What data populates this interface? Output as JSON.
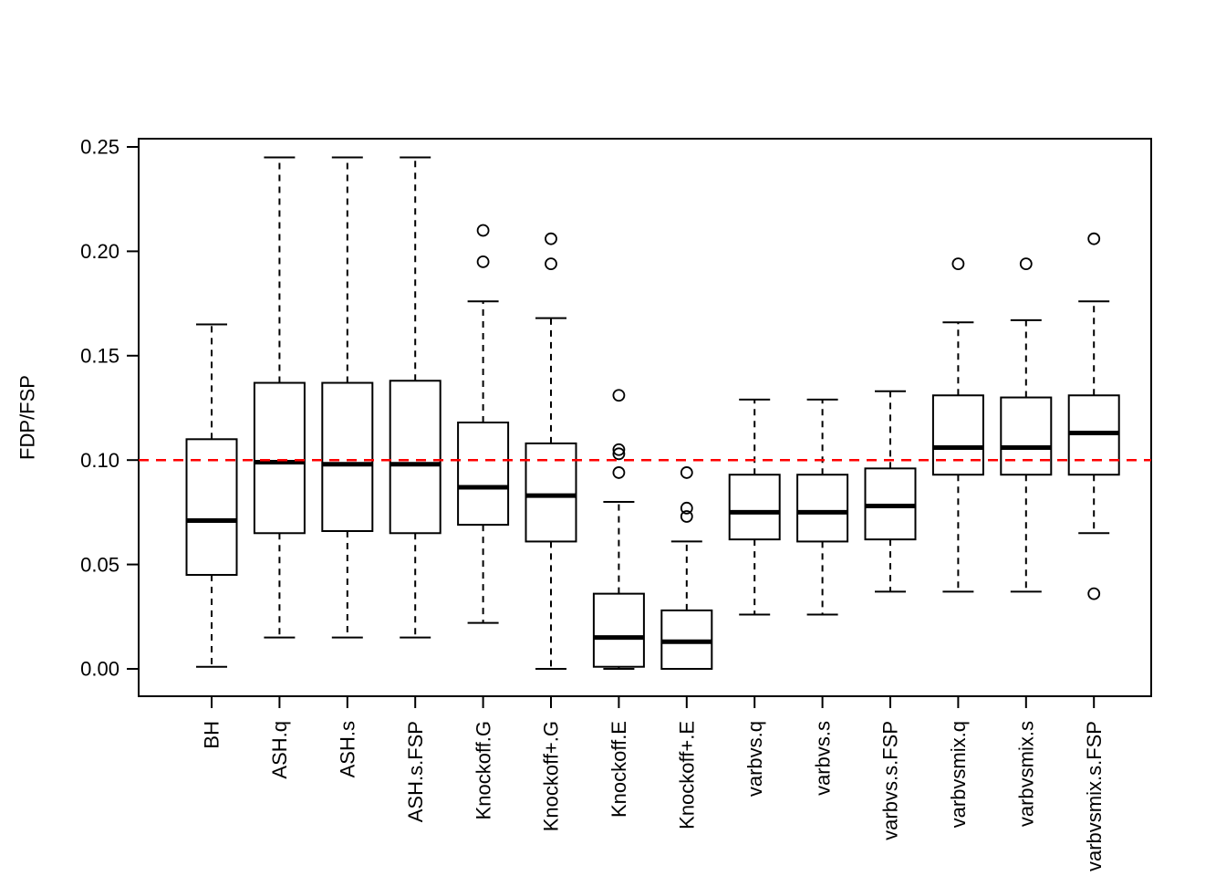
{
  "chart_data": {
    "type": "boxplot",
    "title": "",
    "xlabel": "",
    "ylabel": "FDP/FSP",
    "ylim": [
      0,
      0.25
    ],
    "grid": false,
    "legend_position": "none",
    "box_stroke_color": "#000000",
    "box_fill_color": "#ffffff",
    "reference_line": {
      "value": 0.1,
      "color": "#ff0000",
      "style": "dashed"
    },
    "yticks": [
      {
        "value": 0.0,
        "label": "0.00"
      },
      {
        "value": 0.05,
        "label": "0.05"
      },
      {
        "value": 0.1,
        "label": "0.10"
      },
      {
        "value": 0.15,
        "label": "0.15"
      },
      {
        "value": 0.2,
        "label": "0.20"
      },
      {
        "value": 0.25,
        "label": "0.25"
      }
    ],
    "categories": [
      "BH",
      "ASH.q",
      "ASH.s",
      "ASH.s.FSP",
      "Knockoff.G",
      "Knockoff+.G",
      "Knockoff.E",
      "Knockoff+.E",
      "varbvs.q",
      "varbvs.s",
      "varbvs.s.FSP",
      "varbvsmix.q",
      "varbvsmix.s",
      "varbvsmix.s.FSP"
    ],
    "boxes": [
      {
        "label": "BH",
        "whisker_low": 0.001,
        "q1": 0.045,
        "median": 0.071,
        "q3": 0.11,
        "whisker_high": 0.165,
        "outliers": []
      },
      {
        "label": "ASH.q",
        "whisker_low": 0.015,
        "q1": 0.065,
        "median": 0.099,
        "q3": 0.137,
        "whisker_high": 0.245,
        "outliers": []
      },
      {
        "label": "ASH.s",
        "whisker_low": 0.015,
        "q1": 0.066,
        "median": 0.098,
        "q3": 0.137,
        "whisker_high": 0.245,
        "outliers": []
      },
      {
        "label": "ASH.s.FSP",
        "whisker_low": 0.015,
        "q1": 0.065,
        "median": 0.098,
        "q3": 0.138,
        "whisker_high": 0.245,
        "outliers": []
      },
      {
        "label": "Knockoff.G",
        "whisker_low": 0.022,
        "q1": 0.069,
        "median": 0.087,
        "q3": 0.118,
        "whisker_high": 0.176,
        "outliers": [
          0.195,
          0.21
        ]
      },
      {
        "label": "Knockoff+.G",
        "whisker_low": 0.0,
        "q1": 0.061,
        "median": 0.083,
        "q3": 0.108,
        "whisker_high": 0.168,
        "outliers": [
          0.194,
          0.206
        ]
      },
      {
        "label": "Knockoff.E",
        "whisker_low": 0.0,
        "q1": 0.001,
        "median": 0.015,
        "q3": 0.036,
        "whisker_high": 0.08,
        "outliers": [
          0.094,
          0.103,
          0.105,
          0.131
        ]
      },
      {
        "label": "Knockoff+.E",
        "whisker_low": 0.0,
        "q1": 0.0,
        "median": 0.013,
        "q3": 0.028,
        "whisker_high": 0.061,
        "outliers": [
          0.073,
          0.077,
          0.094
        ]
      },
      {
        "label": "varbvs.q",
        "whisker_low": 0.026,
        "q1": 0.062,
        "median": 0.075,
        "q3": 0.093,
        "whisker_high": 0.129,
        "outliers": []
      },
      {
        "label": "varbvs.s",
        "whisker_low": 0.026,
        "q1": 0.061,
        "median": 0.075,
        "q3": 0.093,
        "whisker_high": 0.129,
        "outliers": []
      },
      {
        "label": "varbvs.s.FSP",
        "whisker_low": 0.037,
        "q1": 0.062,
        "median": 0.078,
        "q3": 0.096,
        "whisker_high": 0.133,
        "outliers": []
      },
      {
        "label": "varbvsmix.q",
        "whisker_low": 0.037,
        "q1": 0.093,
        "median": 0.106,
        "q3": 0.131,
        "whisker_high": 0.166,
        "outliers": [
          0.194
        ]
      },
      {
        "label": "varbvsmix.s",
        "whisker_low": 0.037,
        "q1": 0.093,
        "median": 0.106,
        "q3": 0.13,
        "whisker_high": 0.167,
        "outliers": [
          0.194
        ]
      },
      {
        "label": "varbvsmix.s.FSP",
        "whisker_low": 0.065,
        "q1": 0.093,
        "median": 0.113,
        "q3": 0.131,
        "whisker_high": 0.176,
        "outliers": [
          0.036,
          0.206
        ]
      }
    ]
  }
}
